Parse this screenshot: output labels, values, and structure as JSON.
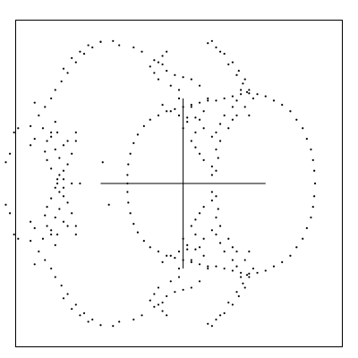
{
  "chart_data": {
    "type": "scatter",
    "xlim": [
      -4.05,
      3.85
    ],
    "ylim": [
      -3.83,
      3.83
    ],
    "grid": false,
    "legend": "none",
    "colors": {
      "point": "#000000",
      "frame": "#000000",
      "axis": "#000000"
    },
    "crosshair": {
      "x_range": [
        -2.0,
        2.0
      ],
      "y_range": [
        -2.0,
        2.0
      ]
    },
    "series": [
      {
        "curve": "right-circle",
        "points": [
          [
            3.2,
            0.0
          ],
          [
            3.18,
            0.3
          ],
          [
            3.15,
            0.55
          ],
          [
            3.1,
            0.8
          ],
          [
            3.0,
            1.05
          ],
          [
            2.9,
            1.3
          ],
          [
            2.75,
            1.5
          ],
          [
            2.6,
            1.7
          ],
          [
            2.4,
            1.85
          ],
          [
            2.2,
            1.95
          ],
          [
            2.0,
            2.05
          ],
          [
            1.8,
            2.1
          ],
          [
            1.6,
            2.12
          ],
          [
            1.4,
            2.1
          ],
          [
            1.2,
            2.05
          ],
          [
            1.0,
            2.0
          ],
          [
            0.8,
            1.95
          ],
          [
            0.6,
            1.95
          ],
          [
            0.4,
            1.9
          ],
          [
            0.2,
            1.85
          ],
          [
            0.0,
            1.8
          ],
          [
            -0.2,
            1.75
          ],
          [
            -0.4,
            1.7
          ],
          [
            -0.6,
            1.6
          ],
          [
            -0.8,
            1.5
          ],
          [
            -0.95,
            1.35
          ],
          [
            -1.1,
            1.15
          ],
          [
            -1.2,
            0.95
          ],
          [
            -1.28,
            0.7
          ],
          [
            -1.33,
            0.45
          ],
          [
            -1.35,
            0.2
          ],
          [
            -1.35,
            0.0
          ],
          [
            3.18,
            -0.3
          ],
          [
            3.15,
            -0.55
          ],
          [
            3.1,
            -0.8
          ],
          [
            3.0,
            -1.05
          ],
          [
            2.9,
            -1.3
          ],
          [
            2.75,
            -1.5
          ],
          [
            2.6,
            -1.7
          ],
          [
            2.4,
            -1.85
          ],
          [
            2.2,
            -1.95
          ],
          [
            2.0,
            -2.05
          ],
          [
            1.8,
            -2.1
          ],
          [
            1.6,
            -2.12
          ],
          [
            1.4,
            -2.1
          ],
          [
            1.2,
            -2.05
          ],
          [
            1.0,
            -2.0
          ],
          [
            0.8,
            -1.95
          ],
          [
            0.6,
            -1.95
          ],
          [
            0.4,
            -1.9
          ],
          [
            0.2,
            -1.85
          ],
          [
            0.0,
            -1.8
          ],
          [
            -0.2,
            -1.75
          ],
          [
            -0.4,
            -1.7
          ],
          [
            -0.6,
            -1.6
          ],
          [
            -0.8,
            -1.5
          ],
          [
            -0.95,
            -1.35
          ],
          [
            -1.1,
            -1.15
          ],
          [
            -1.2,
            -0.95
          ],
          [
            -1.28,
            -0.7
          ],
          [
            -1.33,
            -0.45
          ],
          [
            -1.35,
            -0.2
          ]
        ]
      },
      {
        "curve": "left-wings",
        "points": [
          [
            -2.0,
            3.33
          ],
          [
            -2.2,
            3.2
          ],
          [
            -2.4,
            3.05
          ],
          [
            -2.6,
            2.85
          ],
          [
            -2.8,
            2.6
          ],
          [
            -2.95,
            2.4
          ],
          [
            -3.1,
            2.2
          ],
          [
            -2.3,
            3.25
          ],
          [
            -2.5,
            3.1
          ],
          [
            -2.7,
            2.95
          ],
          [
            -2.9,
            2.7
          ],
          [
            -3.2,
            2.0
          ],
          [
            -3.35,
            1.8
          ],
          [
            -3.5,
            1.6
          ],
          [
            -3.7,
            1.35
          ],
          [
            -3.4,
            1.3
          ],
          [
            -3.2,
            1.2
          ],
          [
            -3.05,
            1.2
          ],
          [
            -3.2,
            1.1
          ],
          [
            -3.3,
            1.0
          ],
          [
            -3.35,
            0.75
          ],
          [
            -3.3,
            0.55
          ],
          [
            -3.2,
            0.35
          ],
          [
            -3.0,
            0.2
          ],
          [
            -2.9,
            0.1
          ],
          [
            -2.7,
            0.0
          ],
          [
            -2.5,
            0.0
          ],
          [
            -2.6,
            1.0
          ],
          [
            -2.7,
            0.7
          ],
          [
            -2.8,
            0.45
          ],
          [
            -2.9,
            0.3
          ],
          [
            -2.6,
            1.2
          ],
          [
            -3.1,
            1.45
          ],
          [
            -3.6,
            1.9
          ],
          [
            -4.1,
            1.2
          ],
          [
            -4.2,
            0.7
          ],
          [
            -4.3,
            0.5
          ],
          [
            -4.0,
            1.3
          ],
          [
            -3.7,
            0.9
          ],
          [
            -3.6,
            1.05
          ],
          [
            -3.0,
            0.6
          ],
          [
            -3.1,
            0.8
          ],
          [
            -2.9,
            0.9
          ],
          [
            -2.8,
            1.0
          ],
          [
            -2.0,
            3.33
          ],
          [
            -2.2,
            -3.2
          ],
          [
            -2.4,
            -3.05
          ],
          [
            -2.6,
            -2.85
          ],
          [
            -2.8,
            -2.6
          ],
          [
            -2.95,
            -2.4
          ],
          [
            -3.1,
            -2.2
          ],
          [
            -2.3,
            -3.25
          ],
          [
            -2.5,
            -3.1
          ],
          [
            -2.7,
            -2.95
          ],
          [
            -2.9,
            -2.7
          ],
          [
            -3.2,
            -2.0
          ],
          [
            -3.35,
            -1.8
          ],
          [
            -3.5,
            -1.6
          ],
          [
            -3.7,
            -1.35
          ],
          [
            -3.4,
            -1.3
          ],
          [
            -3.2,
            -1.2
          ],
          [
            -3.05,
            -1.2
          ],
          [
            -3.2,
            -1.1
          ],
          [
            -3.3,
            -1.0
          ],
          [
            -3.35,
            -0.75
          ],
          [
            -3.3,
            -0.55
          ],
          [
            -3.2,
            -0.35
          ],
          [
            -3.0,
            -0.2
          ],
          [
            -2.9,
            -0.1
          ],
          [
            -2.6,
            -1.0
          ],
          [
            -2.7,
            -0.7
          ],
          [
            -2.8,
            -0.45
          ],
          [
            -2.9,
            -0.3
          ],
          [
            -2.6,
            -1.2
          ],
          [
            -3.1,
            -1.45
          ],
          [
            -3.6,
            -1.9
          ],
          [
            -4.1,
            -1.2
          ],
          [
            -4.2,
            -0.7
          ],
          [
            -4.3,
            -0.5
          ],
          [
            -4.0,
            -1.3
          ],
          [
            -3.7,
            -0.9
          ],
          [
            -3.6,
            -1.05
          ],
          [
            -3.0,
            -0.6
          ],
          [
            -3.1,
            -0.8
          ],
          [
            -2.9,
            -0.9
          ],
          [
            -2.8,
            -1.0
          ],
          [
            -2.0,
            -3.33
          ]
        ]
      },
      {
        "curve": "upper-right-petals",
        "points": [
          [
            0.6,
            3.3
          ],
          [
            0.8,
            3.2
          ],
          [
            1.0,
            3.05
          ],
          [
            1.2,
            2.85
          ],
          [
            1.35,
            2.65
          ],
          [
            1.5,
            2.45
          ],
          [
            1.6,
            2.2
          ],
          [
            1.7,
            2.0
          ],
          [
            1.5,
            1.8
          ],
          [
            1.3,
            1.6
          ],
          [
            1.2,
            1.5
          ],
          [
            0.7,
            3.35
          ],
          [
            0.9,
            3.1
          ],
          [
            1.1,
            2.8
          ],
          [
            1.3,
            2.55
          ],
          [
            1.45,
            2.35
          ],
          [
            1.55,
            2.15
          ],
          [
            -0.6,
            2.85
          ],
          [
            -0.4,
            2.65
          ],
          [
            -0.2,
            2.55
          ],
          [
            0.0,
            2.5
          ],
          [
            0.2,
            2.45
          ],
          [
            0.4,
            2.3
          ],
          [
            0.6,
            2.0
          ],
          [
            0.5,
            1.7
          ],
          [
            0.3,
            1.55
          ],
          [
            0.1,
            1.55
          ],
          [
            -0.1,
            1.6
          ],
          [
            -0.3,
            1.7
          ],
          [
            -0.5,
            1.85
          ],
          [
            0.4,
            1.5
          ],
          [
            0.5,
            1.3
          ],
          [
            0.7,
            1.1
          ],
          [
            0.8,
            0.8
          ],
          [
            0.85,
            0.6
          ],
          [
            0.7,
            0.4
          ],
          [
            0.8,
            0.3
          ],
          [
            0.7,
            0.2
          ],
          [
            0.9,
            1.4
          ],
          [
            0.8,
            1.2
          ],
          [
            0.9,
            1.0
          ],
          [
            1.1,
            1.3
          ],
          [
            1.0,
            1.6
          ],
          [
            1.2,
            1.8
          ],
          [
            0.2,
            1.0
          ],
          [
            0.3,
            0.85
          ],
          [
            0.4,
            0.7
          ],
          [
            0.5,
            0.55
          ],
          [
            0.3,
            1.2
          ],
          [
            0.1,
            1.45
          ],
          [
            0.0,
            1.3
          ],
          [
            0.2,
            1.8
          ],
          [
            -0.1,
            2.0
          ],
          [
            1.3,
            1.95
          ],
          [
            1.4,
            2.2
          ],
          [
            1.6,
            1.6
          ]
        ]
      },
      {
        "curve": "lower-right-petals",
        "points": [
          [
            0.6,
            -3.3
          ],
          [
            0.8,
            -3.2
          ],
          [
            1.0,
            -3.05
          ],
          [
            1.2,
            -2.85
          ],
          [
            1.35,
            -2.65
          ],
          [
            1.5,
            -2.45
          ],
          [
            1.6,
            -2.2
          ],
          [
            1.7,
            -2.0
          ],
          [
            1.5,
            -1.8
          ],
          [
            1.3,
            -1.6
          ],
          [
            1.2,
            -1.5
          ],
          [
            0.7,
            -3.35
          ],
          [
            0.9,
            -3.1
          ],
          [
            1.1,
            -2.8
          ],
          [
            1.3,
            -2.55
          ],
          [
            1.45,
            -2.35
          ],
          [
            1.55,
            -2.15
          ],
          [
            -0.6,
            -2.85
          ],
          [
            -0.4,
            -2.65
          ],
          [
            -0.2,
            -2.55
          ],
          [
            0.0,
            -2.5
          ],
          [
            0.2,
            -2.45
          ],
          [
            0.4,
            -2.3
          ],
          [
            0.6,
            -2.0
          ],
          [
            0.5,
            -1.7
          ],
          [
            0.3,
            -1.55
          ],
          [
            0.1,
            -1.55
          ],
          [
            -0.1,
            -1.6
          ],
          [
            -0.3,
            -1.7
          ],
          [
            -0.5,
            -1.85
          ],
          [
            0.4,
            -1.5
          ],
          [
            0.5,
            -1.3
          ],
          [
            0.7,
            -1.1
          ],
          [
            0.8,
            -0.8
          ],
          [
            0.85,
            -0.6
          ],
          [
            0.7,
            -0.4
          ],
          [
            0.8,
            -0.3
          ],
          [
            0.7,
            -0.2
          ],
          [
            0.9,
            -1.4
          ],
          [
            0.8,
            -1.2
          ],
          [
            0.9,
            -1.0
          ],
          [
            1.1,
            -1.3
          ],
          [
            1.0,
            -1.6
          ],
          [
            1.2,
            -1.8
          ],
          [
            0.2,
            -1.0
          ],
          [
            0.3,
            -0.85
          ],
          [
            0.4,
            -0.7
          ],
          [
            0.5,
            -0.55
          ],
          [
            0.3,
            -1.2
          ],
          [
            0.1,
            -1.45
          ],
          [
            0.0,
            -1.3
          ],
          [
            0.2,
            -1.8
          ],
          [
            -0.1,
            -2.0
          ],
          [
            1.3,
            -1.95
          ],
          [
            1.4,
            -2.2
          ],
          [
            1.6,
            -1.6
          ]
        ]
      },
      {
        "curve": "top-left-arm",
        "points": [
          [
            -0.5,
            3.0
          ],
          [
            -0.7,
            2.9
          ],
          [
            -0.8,
            2.75
          ],
          [
            -1.0,
            3.1
          ],
          [
            -1.2,
            3.2
          ],
          [
            -0.4,
            3.1
          ],
          [
            -0.5,
            2.8
          ],
          [
            -0.7,
            2.6
          ],
          [
            -1.7,
            3.35
          ],
          [
            -1.55,
            3.25
          ],
          [
            -0.6,
            2.45
          ],
          [
            -0.3,
            2.3
          ],
          [
            -0.1,
            2.2
          ]
        ]
      },
      {
        "curve": "bottom-left-arm",
        "points": [
          [
            -0.5,
            -3.0
          ],
          [
            -0.7,
            -2.9
          ],
          [
            -0.8,
            -2.75
          ],
          [
            -1.0,
            -3.1
          ],
          [
            -1.2,
            -3.2
          ],
          [
            -0.4,
            -3.1
          ],
          [
            -0.5,
            -2.8
          ],
          [
            -0.7,
            -2.6
          ],
          [
            -1.7,
            -3.35
          ],
          [
            -1.55,
            -3.25
          ],
          [
            -0.6,
            -2.45
          ],
          [
            -0.3,
            -2.3
          ],
          [
            -0.1,
            -2.2
          ]
        ]
      },
      {
        "curve": "isolated",
        "points": [
          [
            -1.95,
            0.5
          ],
          [
            -1.8,
            -0.5
          ],
          [
            -3.05,
            0.0
          ],
          [
            -3.1,
            -0.1
          ],
          [
            -3.05,
            0.1
          ]
        ]
      }
    ]
  }
}
